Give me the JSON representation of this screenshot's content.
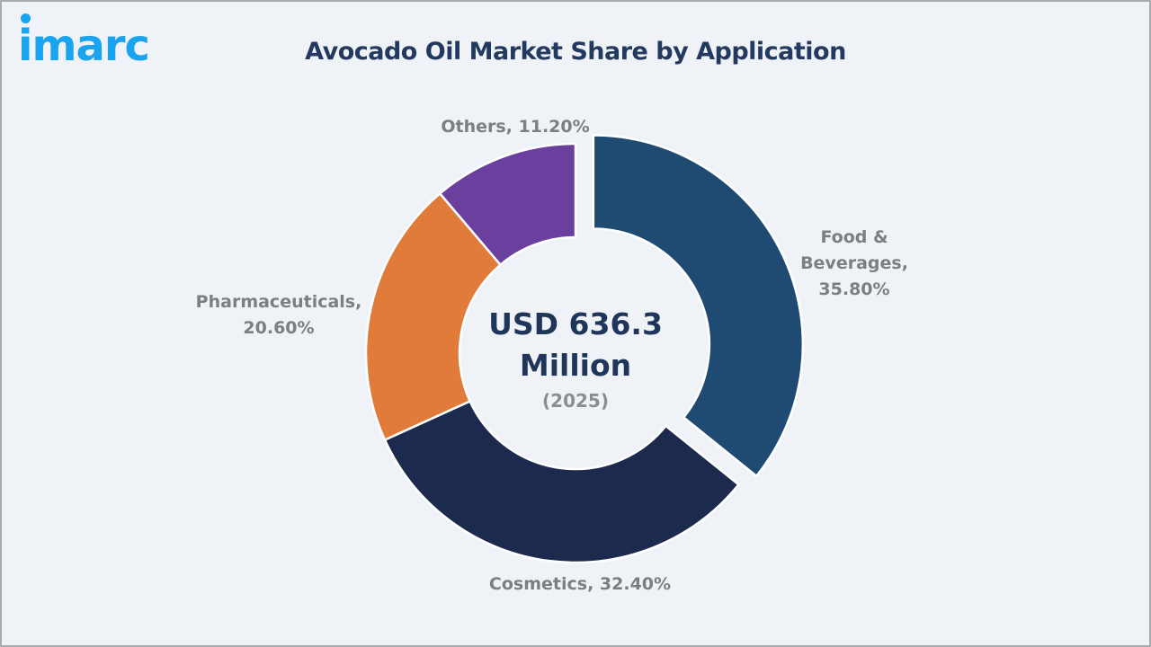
{
  "logo": {
    "text": "imarc",
    "color": "#1aa3ef"
  },
  "chart_data": {
    "type": "pie",
    "subtype": "donut",
    "title": "Avocado Oil Market Share by Application",
    "center_label": {
      "value": "USD 636.3 Million",
      "line1": "USD 636.3",
      "line2": "Million",
      "year": "(2025)"
    },
    "categories": [
      "Food & Beverages",
      "Cosmetics",
      "Pharmaceuticals",
      "Others"
    ],
    "values": [
      35.8,
      32.4,
      20.6,
      11.2
    ],
    "unit": "%",
    "colors": [
      "#1f4b73",
      "#1c2a4d",
      "#e07b39",
      "#6a3f9e"
    ],
    "exploded": [
      "Food & Beverages"
    ],
    "labels": [
      {
        "lines": [
          "Food &",
          "Beverages,",
          "35.80%"
        ]
      },
      {
        "lines": [
          "Cosmetics, 32.40%"
        ]
      },
      {
        "lines": [
          "Pharmaceuticals,",
          "20.60%"
        ]
      },
      {
        "lines": [
          "Others, 11.20%"
        ]
      }
    ],
    "legend": "none (data labels)"
  }
}
